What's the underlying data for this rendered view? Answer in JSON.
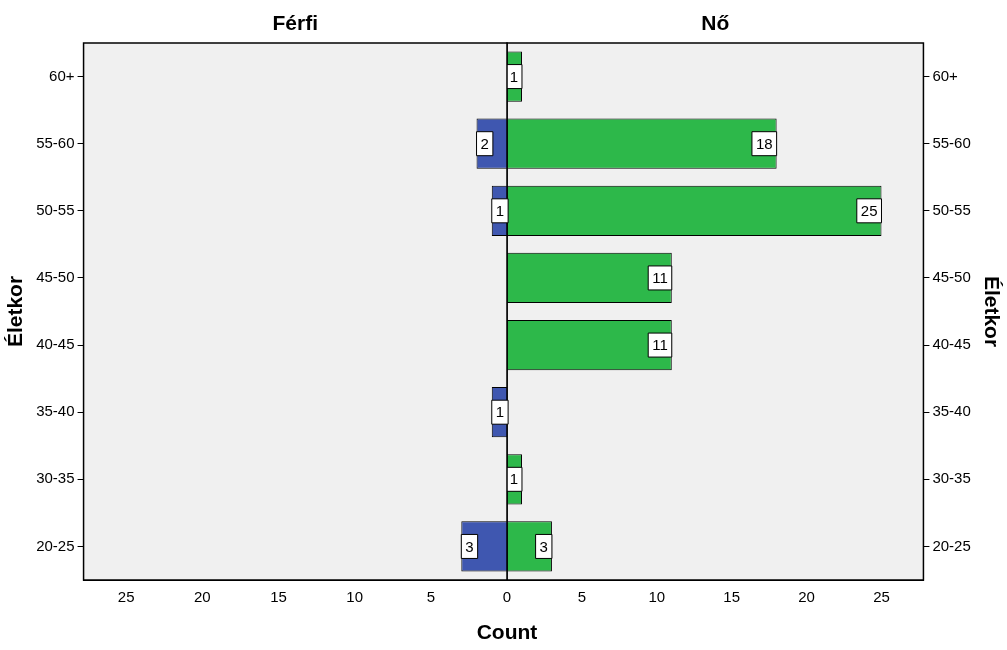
{
  "chart_data": [
    {
      "type": "bar",
      "orientation": "horizontal",
      "title": "Férfi",
      "ylabel": "Életkor",
      "xlabel": "Count",
      "categories": [
        "60+",
        "55-60",
        "50-55",
        "45-50",
        "40-45",
        "35-40",
        "30-35",
        "20-25"
      ],
      "series": [
        {
          "color": "#3f57b0",
          "values": [
            0,
            2,
            1,
            0,
            0,
            1,
            0,
            3
          ],
          "value_labels": [
            null,
            "2",
            "1",
            null,
            null,
            "1",
            null,
            "3"
          ]
        }
      ],
      "xlim": [
        27.8,
        0
      ],
      "xticks": [
        25,
        20,
        15,
        10,
        5
      ],
      "grid": false,
      "legend": false
    },
    {
      "type": "bar",
      "orientation": "horizontal",
      "title": "Nő",
      "ylabel": "Életkor",
      "categories": [
        "60+",
        "55-60",
        "50-55",
        "45-50",
        "40-45",
        "35-40",
        "30-35",
        "20-25"
      ],
      "series": [
        {
          "color": "#2db84a",
          "values": [
            1,
            18,
            25,
            11,
            11,
            0,
            1,
            3
          ],
          "value_labels": [
            "1",
            "18",
            "25",
            "11",
            "11",
            null,
            "1",
            "3"
          ]
        }
      ],
      "xlim": [
        0,
        27.8
      ],
      "xticks": [
        0,
        5,
        10,
        15,
        20,
        25
      ],
      "grid": false,
      "legend": false
    }
  ]
}
